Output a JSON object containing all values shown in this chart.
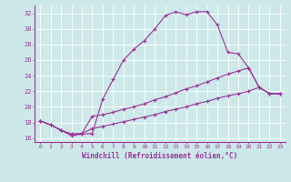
{
  "xlabel": "Windchill (Refroidissement éolien,°C)",
  "x_ticks": [
    0,
    1,
    2,
    3,
    4,
    5,
    6,
    7,
    8,
    9,
    10,
    11,
    12,
    13,
    14,
    15,
    16,
    17,
    18,
    19,
    20,
    21,
    22,
    23
  ],
  "ylim": [
    15.5,
    33.0
  ],
  "xlim": [
    -0.5,
    23.5
  ],
  "yticks": [
    16,
    18,
    20,
    22,
    24,
    26,
    28,
    30,
    32
  ],
  "bg_color": "#cce8e8",
  "grid_color": "#ffffff",
  "line_color": "#993399",
  "curve1_x": [
    0,
    1,
    2,
    3,
    4,
    5,
    6,
    7,
    8,
    9,
    10,
    11,
    12,
    13,
    14,
    15,
    16,
    17,
    18,
    19,
    20,
    21,
    22,
    23
  ],
  "curve1_y": [
    18.2,
    17.7,
    17.0,
    16.3,
    16.5,
    16.6,
    21.0,
    23.5,
    26.0,
    27.4,
    28.5,
    30.0,
    31.7,
    32.2,
    31.8,
    32.2,
    32.2,
    30.5,
    27.0,
    26.8,
    25.0,
    22.5,
    21.7,
    21.7
  ],
  "curve2_x": [
    0,
    1,
    2,
    3,
    4,
    5,
    6,
    7,
    8,
    9,
    10,
    11,
    12,
    13,
    14,
    15,
    16,
    17,
    18,
    19,
    20,
    21,
    22,
    23
  ],
  "curve2_y": [
    18.2,
    17.7,
    17.0,
    16.5,
    16.6,
    18.8,
    19.0,
    19.3,
    19.7,
    20.0,
    20.4,
    20.9,
    21.3,
    21.8,
    22.3,
    22.7,
    23.2,
    23.7,
    24.2,
    24.6,
    25.0,
    22.5,
    21.7,
    21.7
  ],
  "curve3_x": [
    0,
    1,
    2,
    3,
    4,
    5,
    6,
    7,
    8,
    9,
    10,
    11,
    12,
    13,
    14,
    15,
    16,
    17,
    18,
    19,
    20,
    21,
    22,
    23
  ],
  "curve3_y": [
    18.2,
    17.7,
    17.0,
    16.5,
    16.6,
    17.2,
    17.5,
    17.8,
    18.1,
    18.4,
    18.7,
    19.0,
    19.4,
    19.7,
    20.0,
    20.4,
    20.7,
    21.1,
    21.4,
    21.7,
    22.0,
    22.5,
    21.7,
    21.7
  ]
}
